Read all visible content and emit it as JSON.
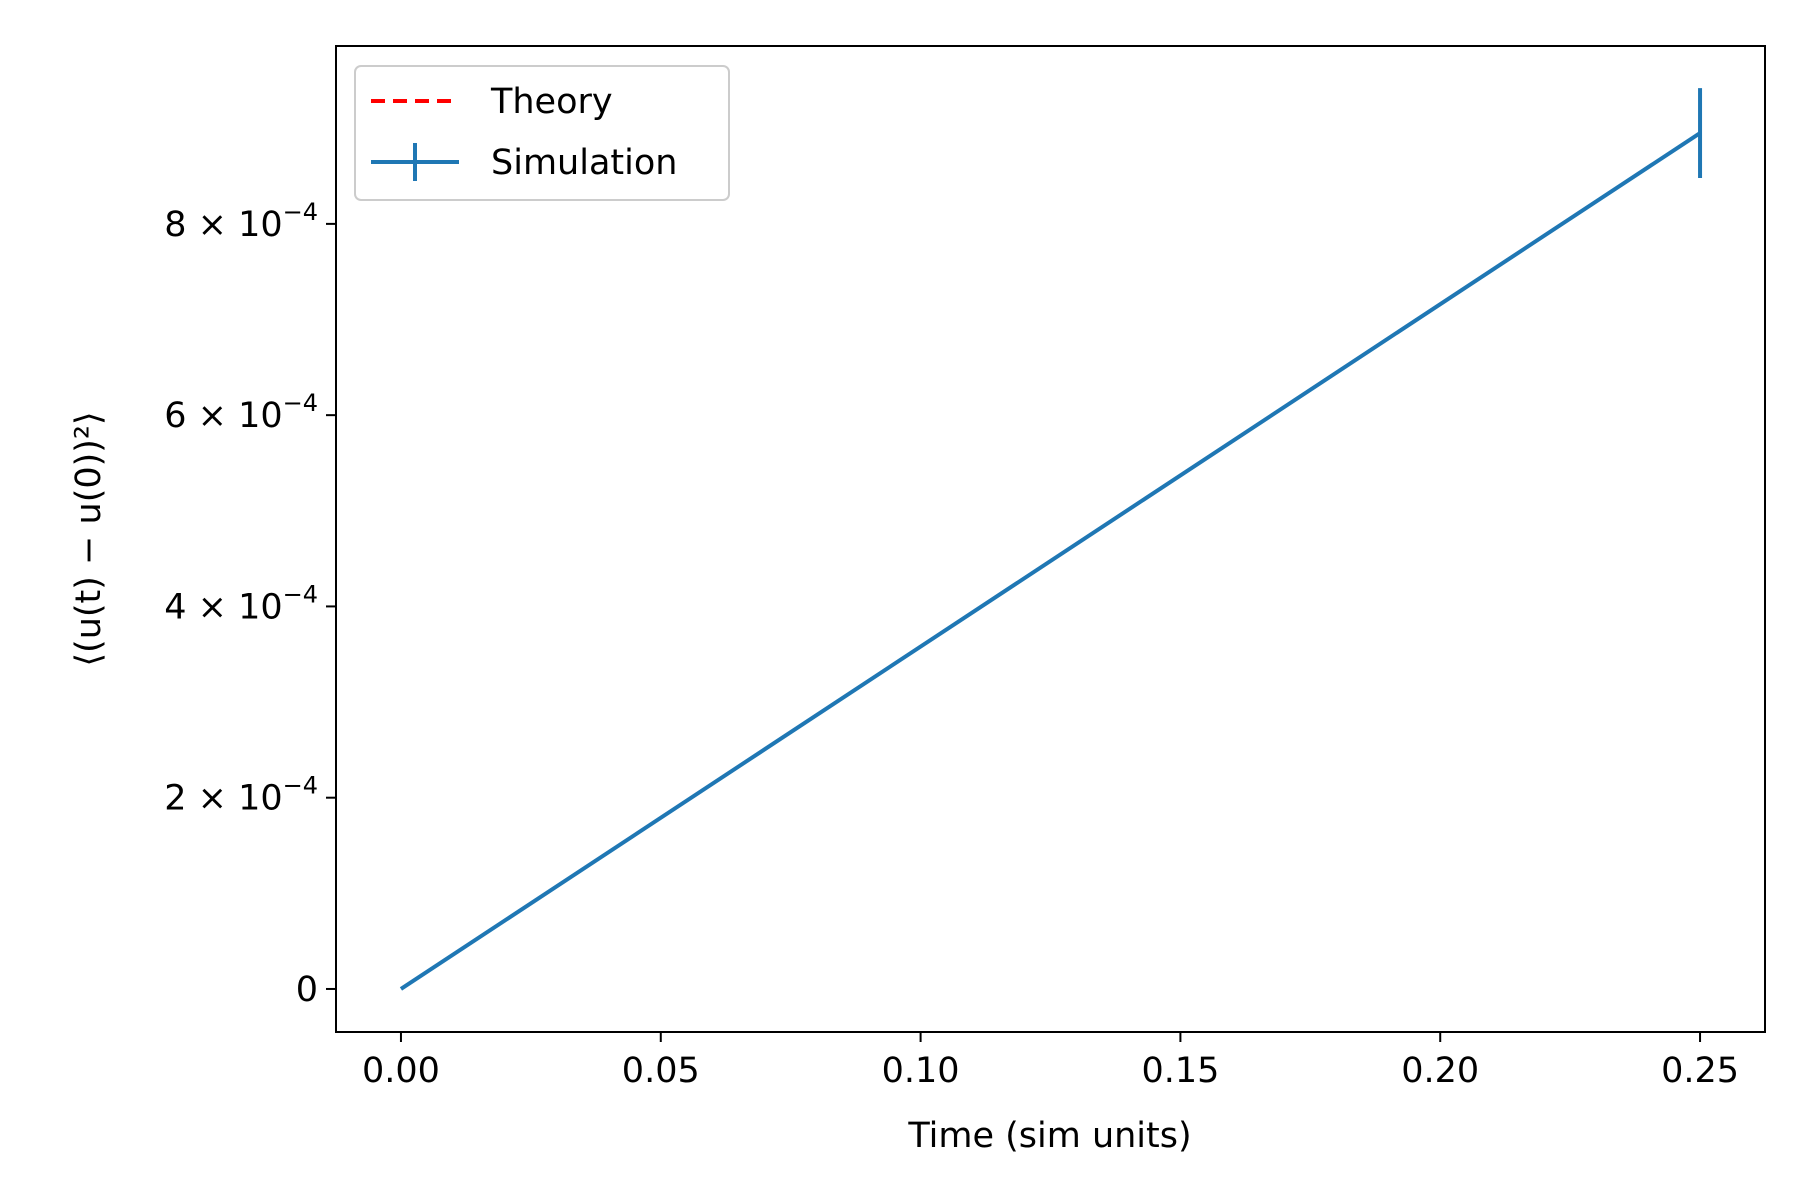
{
  "chart_data": {
    "type": "line",
    "xlabel": "Time (sim units)",
    "ylabel": "⟨(u(t) − u(0))²⟩",
    "xlim": [
      -0.0125,
      0.2625
    ],
    "ylim": [
      -4.5e-05,
      0.000986
    ],
    "xticks": [
      0.0,
      0.05,
      0.1,
      0.15,
      0.2,
      0.25
    ],
    "xtick_labels": [
      "0.00",
      "0.05",
      "0.10",
      "0.15",
      "0.20",
      "0.25"
    ],
    "yticks": [
      0,
      0.0002,
      0.0004,
      0.0006,
      0.0008
    ],
    "ytick_labels": [
      {
        "mant": "0",
        "exp": ""
      },
      {
        "mant": "2 × 10",
        "exp": "−4"
      },
      {
        "mant": "4 × 10",
        "exp": "−4"
      },
      {
        "mant": "6 × 10",
        "exp": "−4"
      },
      {
        "mant": "8 × 10",
        "exp": "−4"
      }
    ],
    "grid": false,
    "legend_position": "top-left",
    "series": [
      {
        "name": "Theory",
        "style": "dashed",
        "color": "#ff0000",
        "x": [],
        "y": []
      },
      {
        "name": "Simulation",
        "style": "solid",
        "color": "#1f77b4",
        "x": [
          0.0,
          0.25
        ],
        "y": [
          0.0,
          0.000895
        ],
        "yerr": [
          0.0,
          4.7e-05
        ]
      }
    ]
  }
}
